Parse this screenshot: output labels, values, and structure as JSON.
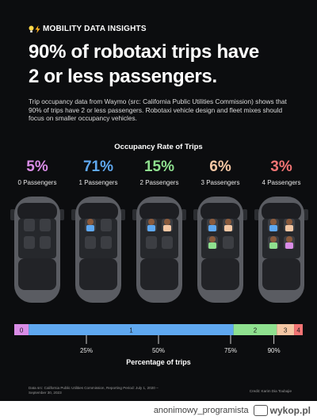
{
  "header": {
    "tagline": "MOBILITY DATA INSIGHTS",
    "tagline_icons": [
      "lightbulb-icon",
      "lightning-icon"
    ],
    "headline_line1": "90% of robotaxi trips have",
    "headline_line2": "2 or less passengers.",
    "intro": "Trip occupancy data from Waymo (src: California Public Utilities Commission) shows that 90% of trips have 2 or less passengers. Robotaxi vehicle design and fleet mixes should focus on smaller occupancy vehicles."
  },
  "chart_data": {
    "type": "bar",
    "title": "Occupancy Rate of Trips",
    "xlabel": "Percentage of trips",
    "categories": [
      "0 Passengers",
      "1 Passengers",
      "2 Passengers",
      "3 Passengers",
      "4 Passengers"
    ],
    "pct_labels": [
      "5%",
      "71%",
      "15%",
      "6%",
      "3%"
    ],
    "values": [
      5,
      71,
      15,
      6,
      3
    ],
    "segment_labels": [
      "0",
      "1",
      "2",
      "3",
      "4"
    ],
    "colors": [
      "#d98ce6",
      "#5fa8f0",
      "#8fe08f",
      "#f4c7a4",
      "#f27474"
    ],
    "passengers_shown": [
      0,
      1,
      2,
      3,
      4
    ],
    "xlim": [
      0,
      100
    ],
    "ticks": [
      25,
      50,
      75,
      90
    ],
    "tick_labels": [
      "25%",
      "50%",
      "75%",
      "90%"
    ]
  },
  "footer": {
    "source_line1": "Data src: California Public Utilities Commission, Reporting Period: July 1, 2020 –",
    "source_line2": "September 30, 2023",
    "credit": "Credit: Karim Dia Toubajie"
  },
  "watermark": {
    "user": "anonimowy_programista",
    "logo_icon": "wykop-logo-icon",
    "logo_text": "wykop.pl"
  }
}
